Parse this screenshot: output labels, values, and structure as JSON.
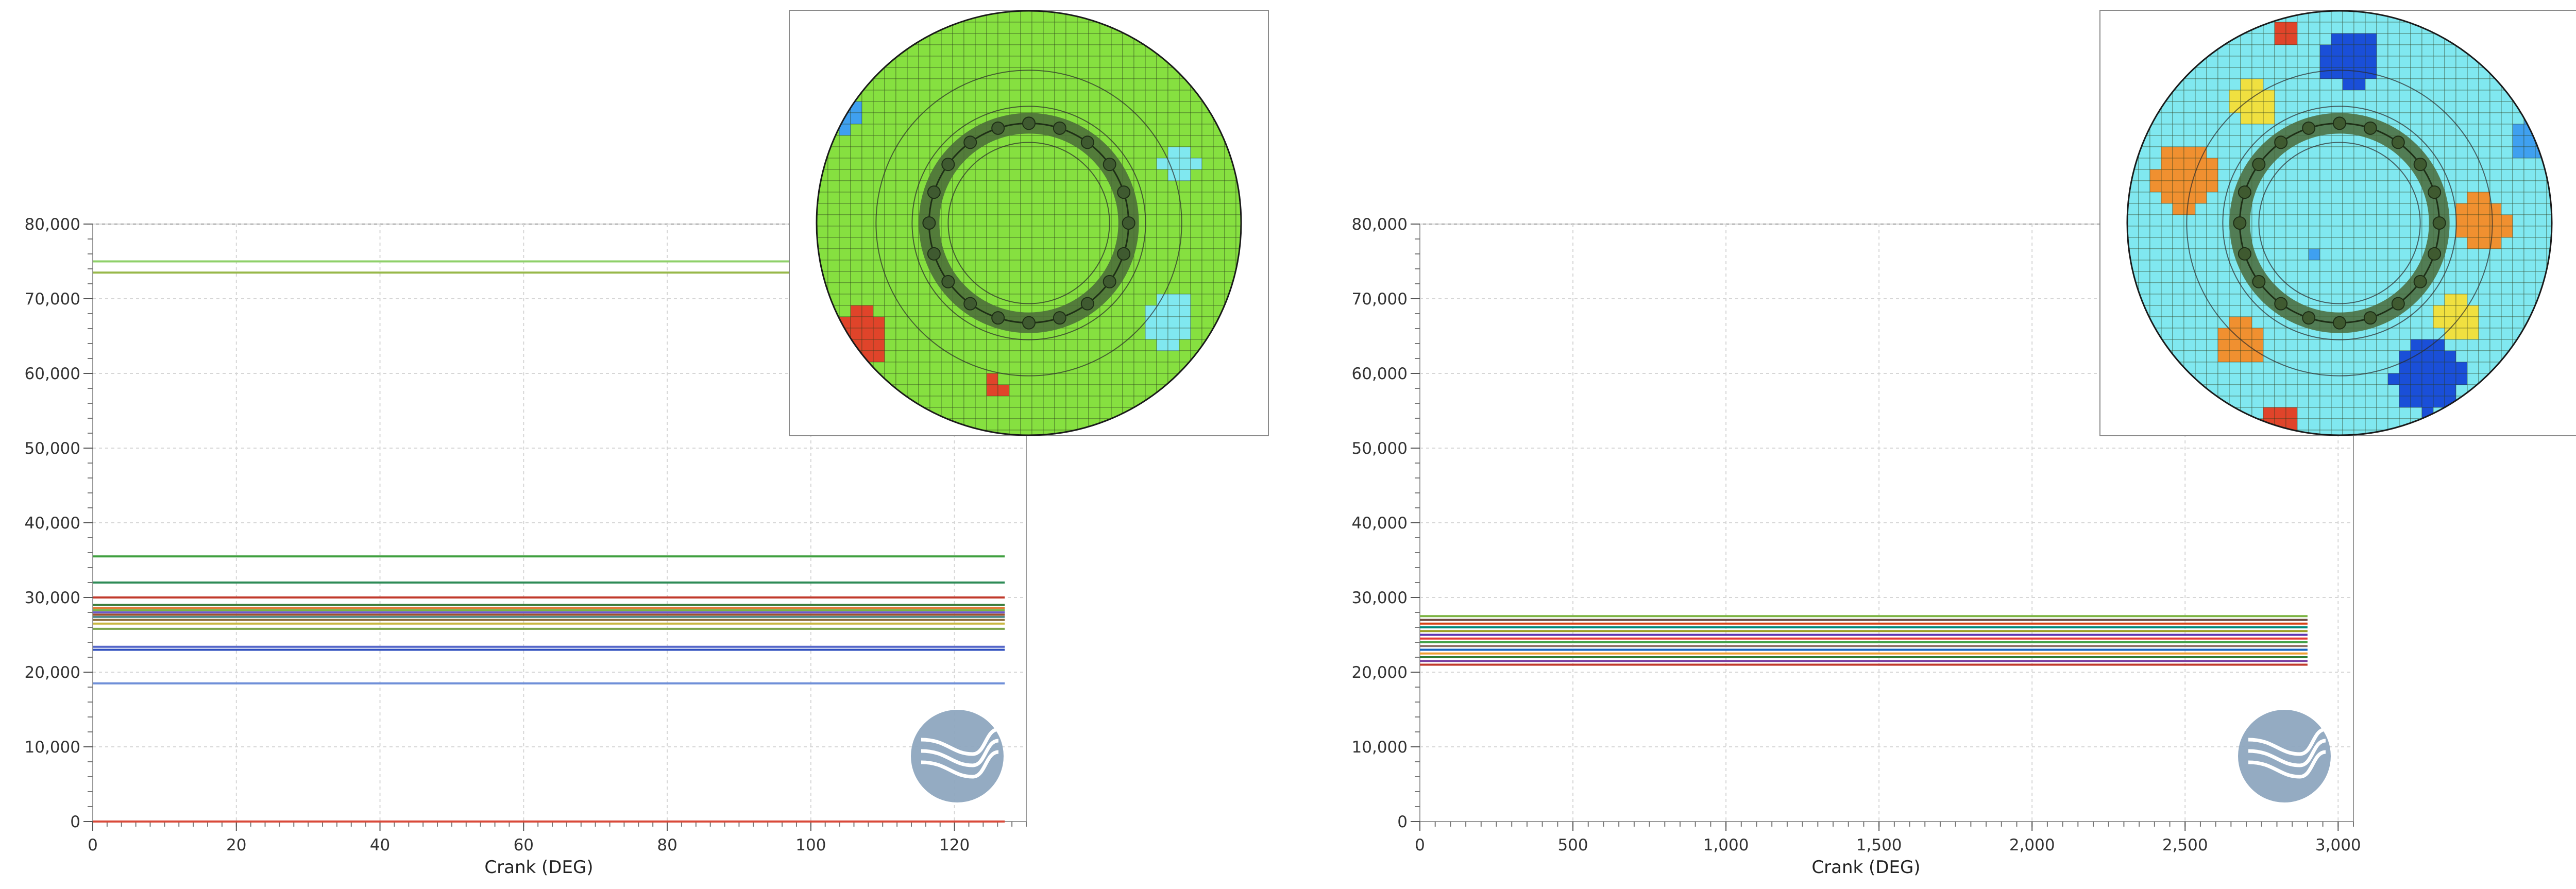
{
  "chart_data": [
    {
      "type": "line",
      "xlabel": "Crank (DEG)",
      "ylabel": "",
      "xlim": [
        0,
        130
      ],
      "ylim": [
        0,
        80000
      ],
      "x_ticks": [
        0,
        20,
        40,
        60,
        80,
        100,
        120
      ],
      "y_ticks": [
        0,
        10000,
        20000,
        30000,
        40000,
        50000,
        60000,
        70000,
        80000
      ],
      "x_tick_labels": [
        "0",
        "20",
        "40",
        "60",
        "80",
        "100",
        "120"
      ],
      "y_tick_labels": [
        "0",
        "10,000",
        "20,000",
        "30,000",
        "40,000",
        "50,000",
        "60,000",
        "70,000",
        "80,000"
      ],
      "x_range": [
        0,
        127
      ],
      "grid": true,
      "series": [
        {
          "color": "#d94a3a",
          "values": [
            0
          ]
        },
        {
          "color": "#6f8fd8",
          "values": [
            18500
          ]
        },
        {
          "color": "#2f4fbf",
          "values": [
            23000
          ]
        },
        {
          "color": "#5566c8",
          "values": [
            23400
          ]
        },
        {
          "color": "#7aa64a",
          "values": [
            25800
          ]
        },
        {
          "color": "#c9b740",
          "values": [
            26500
          ]
        },
        {
          "color": "#8a6d3b",
          "values": [
            27000
          ]
        },
        {
          "color": "#4f8a8b",
          "values": [
            27400
          ]
        },
        {
          "color": "#a0522d",
          "values": [
            27700
          ]
        },
        {
          "color": "#6a5acd",
          "values": [
            28000
          ]
        },
        {
          "color": "#7cb342",
          "values": [
            28300
          ]
        },
        {
          "color": "#e07b39",
          "values": [
            28600
          ]
        },
        {
          "color": "#3b7d3b",
          "values": [
            29000
          ]
        },
        {
          "color": "#c0392b",
          "values": [
            30000
          ]
        },
        {
          "color": "#2e8b57",
          "values": [
            32000
          ]
        },
        {
          "color": "#3f9f3f",
          "values": [
            35500
          ]
        },
        {
          "color": "#98b84a",
          "values": [
            73500
          ]
        },
        {
          "color": "#8fd06a",
          "values": [
            75000
          ]
        }
      ]
    },
    {
      "type": "line",
      "xlabel": "Crank (DEG)",
      "ylabel": "",
      "xlim": [
        0,
        3050
      ],
      "ylim": [
        0,
        80000
      ],
      "x_ticks": [
        0,
        500,
        1000,
        1500,
        2000,
        2500,
        3000
      ],
      "y_ticks": [
        0,
        10000,
        20000,
        30000,
        40000,
        50000,
        60000,
        70000,
        80000
      ],
      "x_tick_labels": [
        "0",
        "500",
        "1,000",
        "1,500",
        "2,000",
        "2,500",
        "3,000"
      ],
      "y_tick_labels": [
        "0",
        "10,000",
        "20,000",
        "30,000",
        "40,000",
        "50,000",
        "60,000",
        "70,000",
        "80,000"
      ],
      "x_range": [
        0,
        2900
      ],
      "grid": true,
      "series": [
        {
          "color": "#c0392b",
          "values": [
            21000
          ]
        },
        {
          "color": "#7b3fa0",
          "values": [
            21500
          ]
        },
        {
          "color": "#2e7d32",
          "values": [
            22000
          ]
        },
        {
          "color": "#f0a030",
          "values": [
            22500
          ]
        },
        {
          "color": "#1565c0",
          "values": [
            23000
          ]
        },
        {
          "color": "#8d6e63",
          "values": [
            23500
          ]
        },
        {
          "color": "#43a047",
          "values": [
            24000
          ]
        },
        {
          "color": "#e53935",
          "values": [
            24500
          ]
        },
        {
          "color": "#5e35b1",
          "values": [
            25000
          ]
        },
        {
          "color": "#9e9d24",
          "values": [
            25500
          ]
        },
        {
          "color": "#00897b",
          "values": [
            26000
          ]
        },
        {
          "color": "#d84315",
          "values": [
            26500
          ]
        },
        {
          "color": "#6d4c41",
          "values": [
            27000
          ]
        },
        {
          "color": "#7cb342",
          "values": [
            27500
          ]
        }
      ]
    }
  ],
  "insets": [
    {
      "icon": "cylinder-heat-map",
      "palette": [
        "#1a4fd8",
        "#3fa0f0",
        "#80e8f0",
        "#86e040",
        "#f0e040",
        "#f09030",
        "#e0442a"
      ]
    },
    {
      "icon": "cylinder-heat-map",
      "palette": [
        "#1a4fd8",
        "#3fa0f0",
        "#80e8f0",
        "#86e040",
        "#f0e040",
        "#f09030",
        "#e0442a"
      ]
    }
  ],
  "logo": {
    "icon": "company-logo-watermark",
    "color": "#8ea6bf"
  }
}
